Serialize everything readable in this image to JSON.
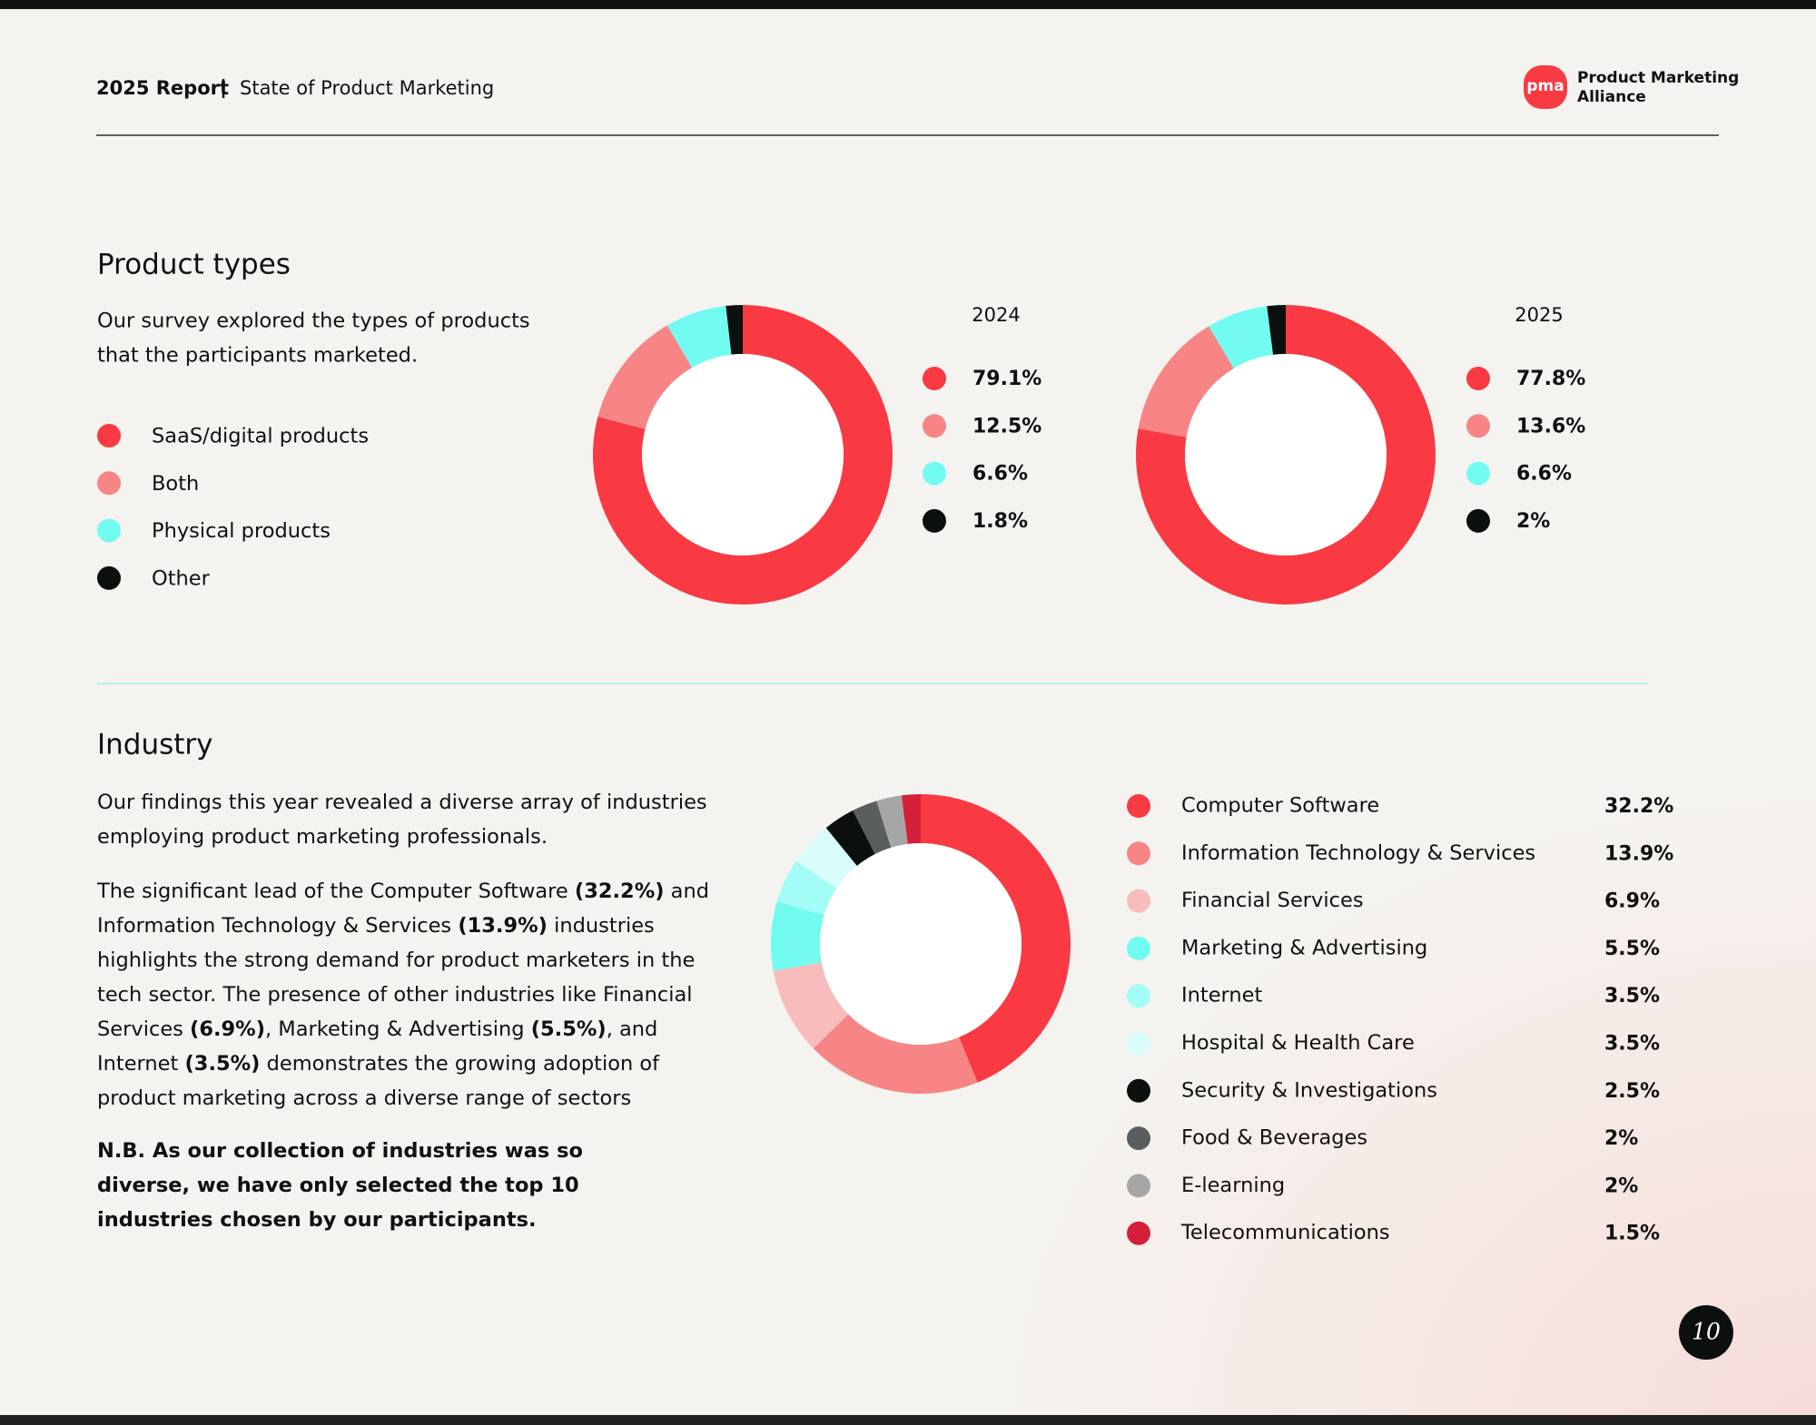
{
  "header": {
    "report": "2025 Report",
    "title": "State of Product Marketing",
    "logo_mark": "pma",
    "logo_name": [
      "Product Marketing",
      "Alliance"
    ]
  },
  "product_types": {
    "title": "Product types",
    "description": [
      "Our survey explored the types of products",
      "that the participants marketed."
    ],
    "legend": [
      "SaaS/digital products",
      "Both",
      "Physical products",
      "Other"
    ]
  },
  "chart_data": [
    {
      "type": "pie",
      "title": "2024",
      "values": [
        79.1,
        12.5,
        6.6,
        1.8
      ],
      "value_labels": [
        "79.1%",
        "12.5%",
        "6.6%",
        "1.8%"
      ],
      "colors": [
        "#f93a43",
        "#f78585",
        "#72fcf1",
        "#0b0f0e"
      ]
    },
    {
      "type": "pie",
      "title": "2025",
      "values": [
        77.8,
        13.6,
        6.6,
        2
      ],
      "value_labels": [
        "77.8%",
        "13.6%",
        "6.6%",
        "2%"
      ],
      "colors": [
        "#f93a43",
        "#f78585",
        "#72fcf1",
        "#0b0f0e"
      ]
    },
    {
      "type": "pie",
      "categories": [
        "Computer Software",
        "Information Technology & Services",
        "Financial Services",
        "Marketing & Advertising",
        "Internet",
        "Hospital & Health Care",
        "Security & Investigations",
        "Food & Beverages",
        "E-learning",
        "Telecommunications"
      ],
      "values": [
        32.2,
        13.9,
        6.9,
        5.5,
        3.5,
        3.5,
        2.5,
        2,
        2,
        1.5
      ],
      "value_labels": [
        "32.2%",
        "13.9%",
        "6.9%",
        "5.5%",
        "3.5%",
        "3.5%",
        "2.5%",
        "2%",
        "2%",
        "1.5%"
      ],
      "colors": [
        "#f93a43",
        "#f78585",
        "#f9bcbc",
        "#72fcf1",
        "#a4fcf6",
        "#d8fdfa",
        "#0b0f0e",
        "#5b5e5e",
        "#a6a6a6",
        "#d41f3a"
      ]
    }
  ],
  "industry": {
    "title": "Industry",
    "paragraphs": [
      [
        {
          "text": "Our findings this year revealed a diverse array of industries employing product marketing professionals.",
          "bold": false
        }
      ],
      [
        {
          "text": "The significant lead of the Computer Software ",
          "bold": false
        },
        {
          "text": "(32.2%)",
          "bold": true
        },
        {
          "text": " and Information Technology & Services ",
          "bold": false
        },
        {
          "text": "(13.9%)",
          "bold": true
        },
        {
          "text": " industries highlights the strong demand for product marketers in the tech sector. The presence of other industries like Financial Services ",
          "bold": false
        },
        {
          "text": "(6.9%)",
          "bold": true
        },
        {
          "text": ", Marketing & Advertising ",
          "bold": false
        },
        {
          "text": "(5.5%)",
          "bold": true
        },
        {
          "text": ", and Internet ",
          "bold": false
        },
        {
          "text": "(3.5%)",
          "bold": true
        },
        {
          "text": " demonstrates the growing adoption of product marketing across a diverse range of sectors",
          "bold": false
        }
      ],
      [
        {
          "text": "N.B. As our collection of industries was so diverse, we have only selected the top 10 industries chosen by our participants.",
          "bold": true
        }
      ]
    ]
  },
  "page_number": "10"
}
